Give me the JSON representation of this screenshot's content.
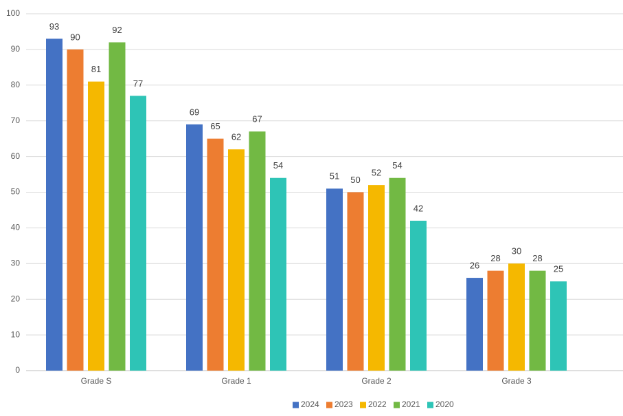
{
  "chart_data": {
    "type": "bar",
    "categories": [
      "Grade S",
      "Grade 1",
      "Grade 2",
      "Grade 3"
    ],
    "series": [
      {
        "name": "2024",
        "color": "#4472c4",
        "values": [
          93,
          69,
          51,
          26
        ]
      },
      {
        "name": "2023",
        "color": "#ed7d31",
        "values": [
          90,
          65,
          50,
          28
        ]
      },
      {
        "name": "2022",
        "color": "#f5b800",
        "values": [
          81,
          62,
          52,
          30
        ]
      },
      {
        "name": "2021",
        "color": "#72b944",
        "values": [
          92,
          67,
          54,
          28
        ]
      },
      {
        "name": "2020",
        "color": "#2ec4b6",
        "values": [
          77,
          54,
          42,
          25
        ]
      }
    ],
    "ylim": [
      0,
      100
    ],
    "yticks": [
      0,
      10,
      20,
      30,
      40,
      50,
      60,
      70,
      80,
      90,
      100
    ],
    "grid": true,
    "legend": "bottom",
    "data_labels": true
  }
}
